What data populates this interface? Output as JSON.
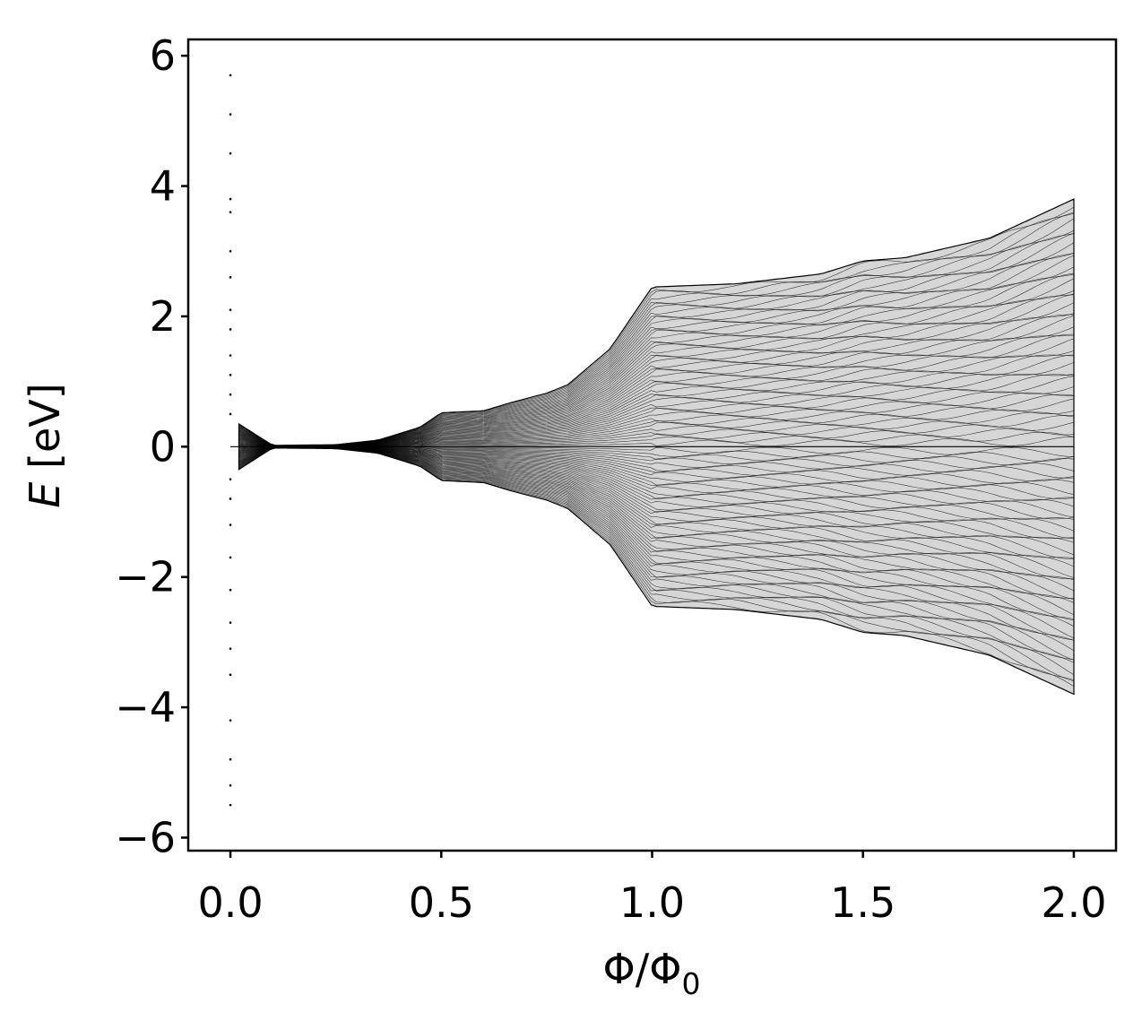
{
  "chart_data": {
    "type": "scatter",
    "title": "",
    "xlabel": "Φ/Φ",
    "xlabel_subscript": "0",
    "ylabel_italic": "E",
    "ylabel_rest": " [eV]",
    "xlim": [
      -0.1,
      2.1
    ],
    "ylim": [
      -6.2,
      6.25
    ],
    "xticks": [
      0.0,
      0.5,
      1.0,
      1.5,
      2.0
    ],
    "xtick_labels": [
      "0.0",
      "0.5",
      "1.0",
      "1.5",
      "2.0"
    ],
    "yticks": [
      -6,
      -4,
      -2,
      0,
      2,
      4,
      6
    ],
    "ytick_labels": [
      "−6",
      "−4",
      "−2",
      "0",
      "2",
      "4",
      "6"
    ],
    "grid": false,
    "marker_color": "#000000",
    "bands": {
      "envelope": [
        {
          "x": 0.0,
          "ymax": 5.7
        },
        {
          "x": 0.02,
          "ymax": 0.35
        },
        {
          "x": 0.1,
          "ymax": 0.02
        },
        {
          "x": 0.25,
          "ymax": 0.03
        },
        {
          "x": 0.35,
          "ymax": 0.1
        },
        {
          "x": 0.45,
          "ymax": 0.3
        },
        {
          "x": 0.5,
          "ymax": 0.52
        },
        {
          "x": 0.6,
          "ymax": 0.55
        },
        {
          "x": 0.667,
          "ymax": 0.68
        },
        {
          "x": 0.75,
          "ymax": 0.82
        },
        {
          "x": 0.8,
          "ymax": 0.95
        },
        {
          "x": 0.9,
          "ymax": 1.5
        },
        {
          "x": 1.0,
          "ymax": 2.45
        },
        {
          "x": 1.2,
          "ymax": 2.5
        },
        {
          "x": 1.4,
          "ymax": 2.65
        },
        {
          "x": 1.5,
          "ymax": 2.85
        },
        {
          "x": 1.6,
          "ymax": 2.9
        },
        {
          "x": 1.8,
          "ymax": 3.2
        },
        {
          "x": 2.0,
          "ymax": 3.8
        }
      ],
      "zero_mode_x": [
        0.0,
        2.0
      ]
    }
  }
}
